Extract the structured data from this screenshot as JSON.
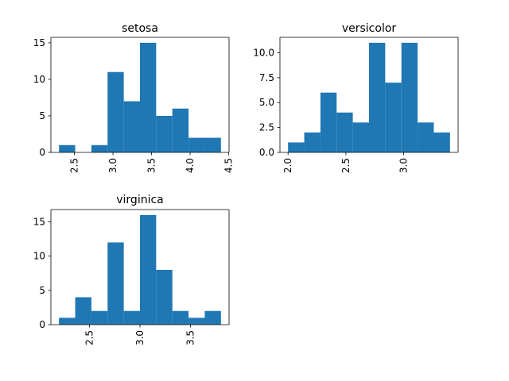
{
  "figure": {
    "background": "#ffffff",
    "bar_color": "#1f77b4",
    "axis_color": "#000000"
  },
  "chart_data": [
    {
      "type": "bar",
      "title": "setosa",
      "xlabel": "",
      "ylabel": "",
      "bin_edges": [
        2.3,
        2.51,
        2.72,
        2.93,
        3.14,
        3.35,
        3.56,
        3.77,
        3.98,
        4.19,
        4.4
      ],
      "counts": [
        1,
        0,
        1,
        11,
        7,
        15,
        5,
        6,
        2,
        2
      ],
      "xlim": [
        2.195,
        4.505
      ],
      "ylim": [
        0,
        15.75
      ],
      "xticks": [
        "2.5",
        "3.0",
        "3.5",
        "4.0",
        "4.5"
      ],
      "yticks": [
        "0",
        "5",
        "10",
        "15"
      ],
      "grid": false
    },
    {
      "type": "bar",
      "title": "versicolor",
      "xlabel": "",
      "ylabel": "",
      "bin_edges": [
        2.0,
        2.14,
        2.28,
        2.42,
        2.56,
        2.7,
        2.84,
        2.98,
        3.12,
        3.26,
        3.4
      ],
      "counts": [
        1,
        2,
        6,
        4,
        3,
        11,
        7,
        11,
        3,
        2
      ],
      "xlim": [
        1.93,
        3.47
      ],
      "ylim": [
        0,
        11.55
      ],
      "xticks": [
        "2.0",
        "2.5",
        "3.0"
      ],
      "yticks": [
        "0.0",
        "2.5",
        "5.0",
        "7.5",
        "10.0"
      ],
      "grid": false
    },
    {
      "type": "bar",
      "title": "virginica",
      "xlabel": "",
      "ylabel": "",
      "bin_edges": [
        2.2,
        2.36,
        2.52,
        2.68,
        2.84,
        3.0,
        3.16,
        3.32,
        3.48,
        3.64,
        3.8
      ],
      "counts": [
        1,
        4,
        2,
        12,
        2,
        16,
        8,
        2,
        1,
        2
      ],
      "xlim": [
        2.12,
        3.88
      ],
      "ylim": [
        0,
        16.8
      ],
      "xticks": [
        "2.5",
        "3.0",
        "3.5"
      ],
      "yticks": [
        "0",
        "5",
        "10",
        "15"
      ],
      "grid": false
    }
  ]
}
